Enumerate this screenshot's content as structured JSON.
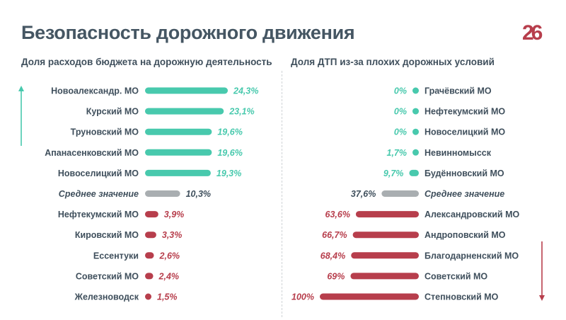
{
  "header": {
    "title": "Безопасность дорожного движения",
    "logo_text": "26"
  },
  "colors": {
    "good": "#48c9ad",
    "bad": "#b73e4c",
    "average": "#a9aeb1",
    "text": "#3f4f5c"
  },
  "chart_data": [
    {
      "type": "bar",
      "orientation": "horizontal",
      "title": "Доля расходов бюджета на дорожную деятельность",
      "direction": "up-arrow-higher-is-better",
      "unit": "%",
      "xlim": [
        0,
        24.3
      ],
      "items": [
        {
          "label": "Новоалександр. МО",
          "value": 24.3,
          "display": "24,3%",
          "group": "good"
        },
        {
          "label": "Курский МО",
          "value": 23.1,
          "display": "23,1%",
          "group": "good"
        },
        {
          "label": "Труновский МО",
          "value": 19.6,
          "display": "19,6%",
          "group": "good"
        },
        {
          "label": "Апанасенковский МО",
          "value": 19.6,
          "display": "19,6%",
          "group": "good"
        },
        {
          "label": "Новоселицкий МО",
          "value": 19.3,
          "display": "19,3%",
          "group": "good"
        },
        {
          "label": "Среднее значение",
          "value": 10.3,
          "display": "10,3%",
          "group": "average"
        },
        {
          "label": "Нефтекумский МО",
          "value": 3.9,
          "display": "3,9%",
          "group": "bad"
        },
        {
          "label": "Кировский МО",
          "value": 3.3,
          "display": "3,3%",
          "group": "bad"
        },
        {
          "label": "Ессентуки",
          "value": 2.6,
          "display": "2,6%",
          "group": "bad"
        },
        {
          "label": "Советский МО",
          "value": 2.4,
          "display": "2,4%",
          "group": "bad"
        },
        {
          "label": "Железноводск",
          "value": 1.5,
          "display": "1,5%",
          "group": "bad"
        }
      ]
    },
    {
      "type": "bar",
      "orientation": "horizontal",
      "title": "Доля ДТП из-за плохих дорожных условий",
      "direction": "down-arrow-higher-is-worse",
      "unit": "%",
      "xlim": [
        0,
        100
      ],
      "items": [
        {
          "label": "Грачёвский МО",
          "value": 0,
          "display": "0%",
          "group": "good"
        },
        {
          "label": "Нефтекумский МО",
          "value": 0,
          "display": "0%",
          "group": "good"
        },
        {
          "label": "Новоселицкий МО",
          "value": 0,
          "display": "0%",
          "group": "good"
        },
        {
          "label": "Невинномысск",
          "value": 1.7,
          "display": "1,7%",
          "group": "good"
        },
        {
          "label": "Будённовский МО",
          "value": 9.7,
          "display": "9,7%",
          "group": "good"
        },
        {
          "label": "Среднее значение",
          "value": 37.6,
          "display": "37,6%",
          "group": "average"
        },
        {
          "label": "Александровский МО",
          "value": 63.6,
          "display": "63,6%",
          "group": "bad"
        },
        {
          "label": "Андроповский МО",
          "value": 66.7,
          "display": "66,7%",
          "group": "bad"
        },
        {
          "label": "Благодарненский МО",
          "value": 68.4,
          "display": "68,4%",
          "group": "bad"
        },
        {
          "label": "Советский МО",
          "value": 69,
          "display": "69%",
          "group": "bad"
        },
        {
          "label": "Степновский МО",
          "value": 100,
          "display": "100%",
          "group": "bad"
        }
      ]
    }
  ]
}
